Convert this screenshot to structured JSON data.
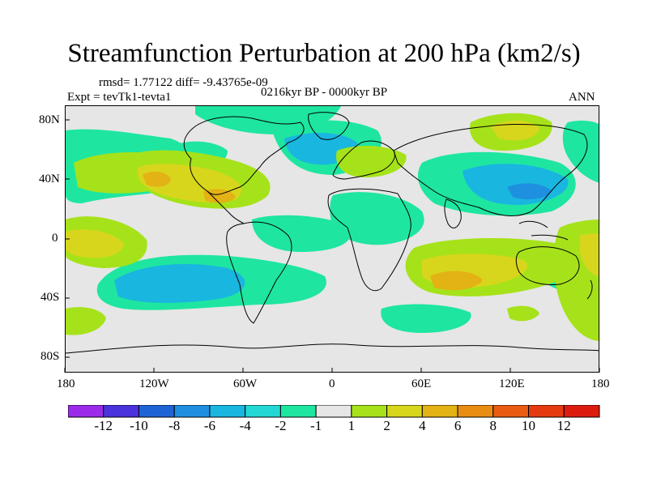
{
  "title": "Streamfunction Perturbation at 200 hPa (km2/s)",
  "stats_line": "rmsd= 1.77122 diff= -9.43765e-09",
  "period": "0216kyr BP - 0000kyr BP",
  "experiment": "Expt = tevTk1-tevta1",
  "season": "ANN",
  "map": {
    "variable": "streamfunction perturbation",
    "level": "200 hPa",
    "units": "km2/s",
    "projection": "cylindrical equidistant",
    "lon_range": [
      -180,
      180
    ],
    "lat_range": [
      -90,
      90
    ],
    "lat_labels": [
      "80N",
      "40N",
      "0",
      "40S",
      "80S"
    ],
    "lon_labels": [
      "180",
      "120W",
      "60W",
      "0",
      "60E",
      "120E",
      "180"
    ]
  },
  "colorbar": {
    "labels": [
      "-12",
      "-10",
      "-8",
      "-6",
      "-4",
      "-2",
      "-1",
      "1",
      "2",
      "4",
      "6",
      "8",
      "10",
      "12"
    ],
    "colors": [
      "#9b2be8",
      "#4a33dc",
      "#1f64d6",
      "#1f8fe0",
      "#19b6e0",
      "#22d7d4",
      "#1ee6a0",
      "#e6e6e6",
      "#a6e21a",
      "#d8d61c",
      "#e3b214",
      "#e88d12",
      "#e85d12",
      "#e63a10",
      "#dd1c10"
    ]
  }
}
